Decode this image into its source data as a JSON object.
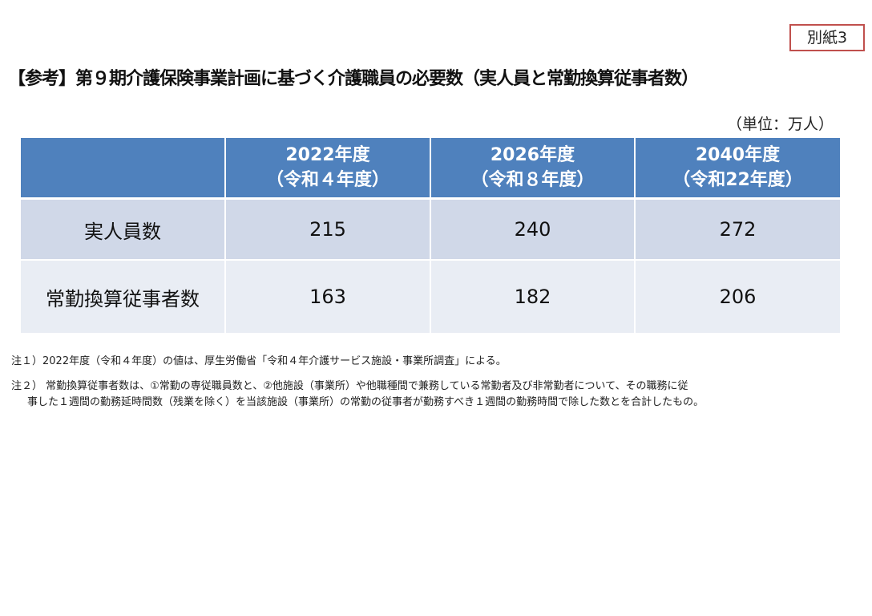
{
  "badge": "別紙3",
  "title": "【参考】第９期介護保険事業計画に基づく介護職員の必要数（実人員と常勤換算従事者数）",
  "unit": "（単位：万人）",
  "table": {
    "header": [
      {
        "year": "",
        "era": ""
      },
      {
        "year": "2022年度",
        "era": "（令和４年度）"
      },
      {
        "year": "2026年度",
        "era": "（令和８年度）"
      },
      {
        "year": "2040年度",
        "era": "（令和22年度）"
      }
    ],
    "rows": [
      {
        "label": "実人員数",
        "values": [
          "215",
          "240",
          "272"
        ]
      },
      {
        "label": "常勤換算従事者数",
        "values": [
          "163",
          "182",
          "206"
        ]
      }
    ]
  },
  "notes": {
    "note1": "注１）2022年度（令和４年度）の値は、厚生労働省「令和４年介護サービス施設・事業所調査」による。",
    "note2_line1": "注２） 常勤換算従事者数は、①常勤の専従職員数と、②他施設（事業所）や他職種間で兼務している常勤者及び非常勤者について、その職務に従",
    "note2_line2": "事した１週間の勤務延時間数（残業を除く）を当該施設（事業所）の常勤の従事者が勤務すべき１週間の勤務時間で除した数とを合計したもの。"
  },
  "colors": {
    "header_bg": "#4f81bd",
    "row1_bg": "#d0d8e8",
    "row2_bg": "#e9edf4",
    "badge_border": "#c0504d"
  }
}
